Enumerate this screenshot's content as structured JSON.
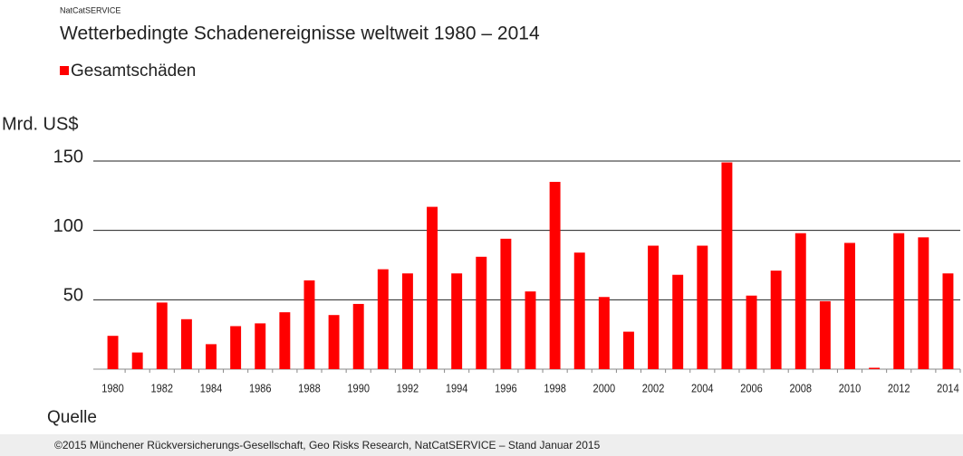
{
  "chart_data": {
    "type": "bar",
    "supertitle": "NatCatSERVICE",
    "title": "Wetterbedingte Schadenereignisse weltweit 1980 – 2014",
    "y_label": "Mrd. US$",
    "source_label": "Quelle",
    "source": "©2015 Münchener Rückversicherungs-Gesellschaft, Geo Risks Research, NatCatSERVICE – Stand Januar 2015",
    "categories": [
      "1980",
      null,
      "1982",
      null,
      "1984",
      null,
      "1986",
      null,
      "1988",
      null,
      "1990",
      null,
      "1992",
      null,
      "1994",
      null,
      "1996",
      null,
      "1998",
      null,
      "2000",
      null,
      "2002",
      null,
      "2004",
      null,
      "2006",
      null,
      "2008",
      null,
      "2010",
      null,
      "2012",
      null,
      "2014"
    ],
    "series": [
      {
        "name": "Gesamtschäden",
        "color": "#ff0000",
        "values": [
          24,
          12,
          48,
          36,
          18,
          31,
          33,
          41,
          64,
          39,
          47,
          72,
          69,
          117,
          69,
          81,
          94,
          56,
          135,
          84,
          52,
          27,
          89,
          68,
          89,
          149,
          53,
          71,
          98,
          49,
          91,
          1,
          98,
          95,
          69
        ]
      }
    ],
    "ylim": [
      0,
      150
    ],
    "yticks": [
      50,
      100,
      150
    ],
    "grid": true,
    "legend": "top-left"
  }
}
